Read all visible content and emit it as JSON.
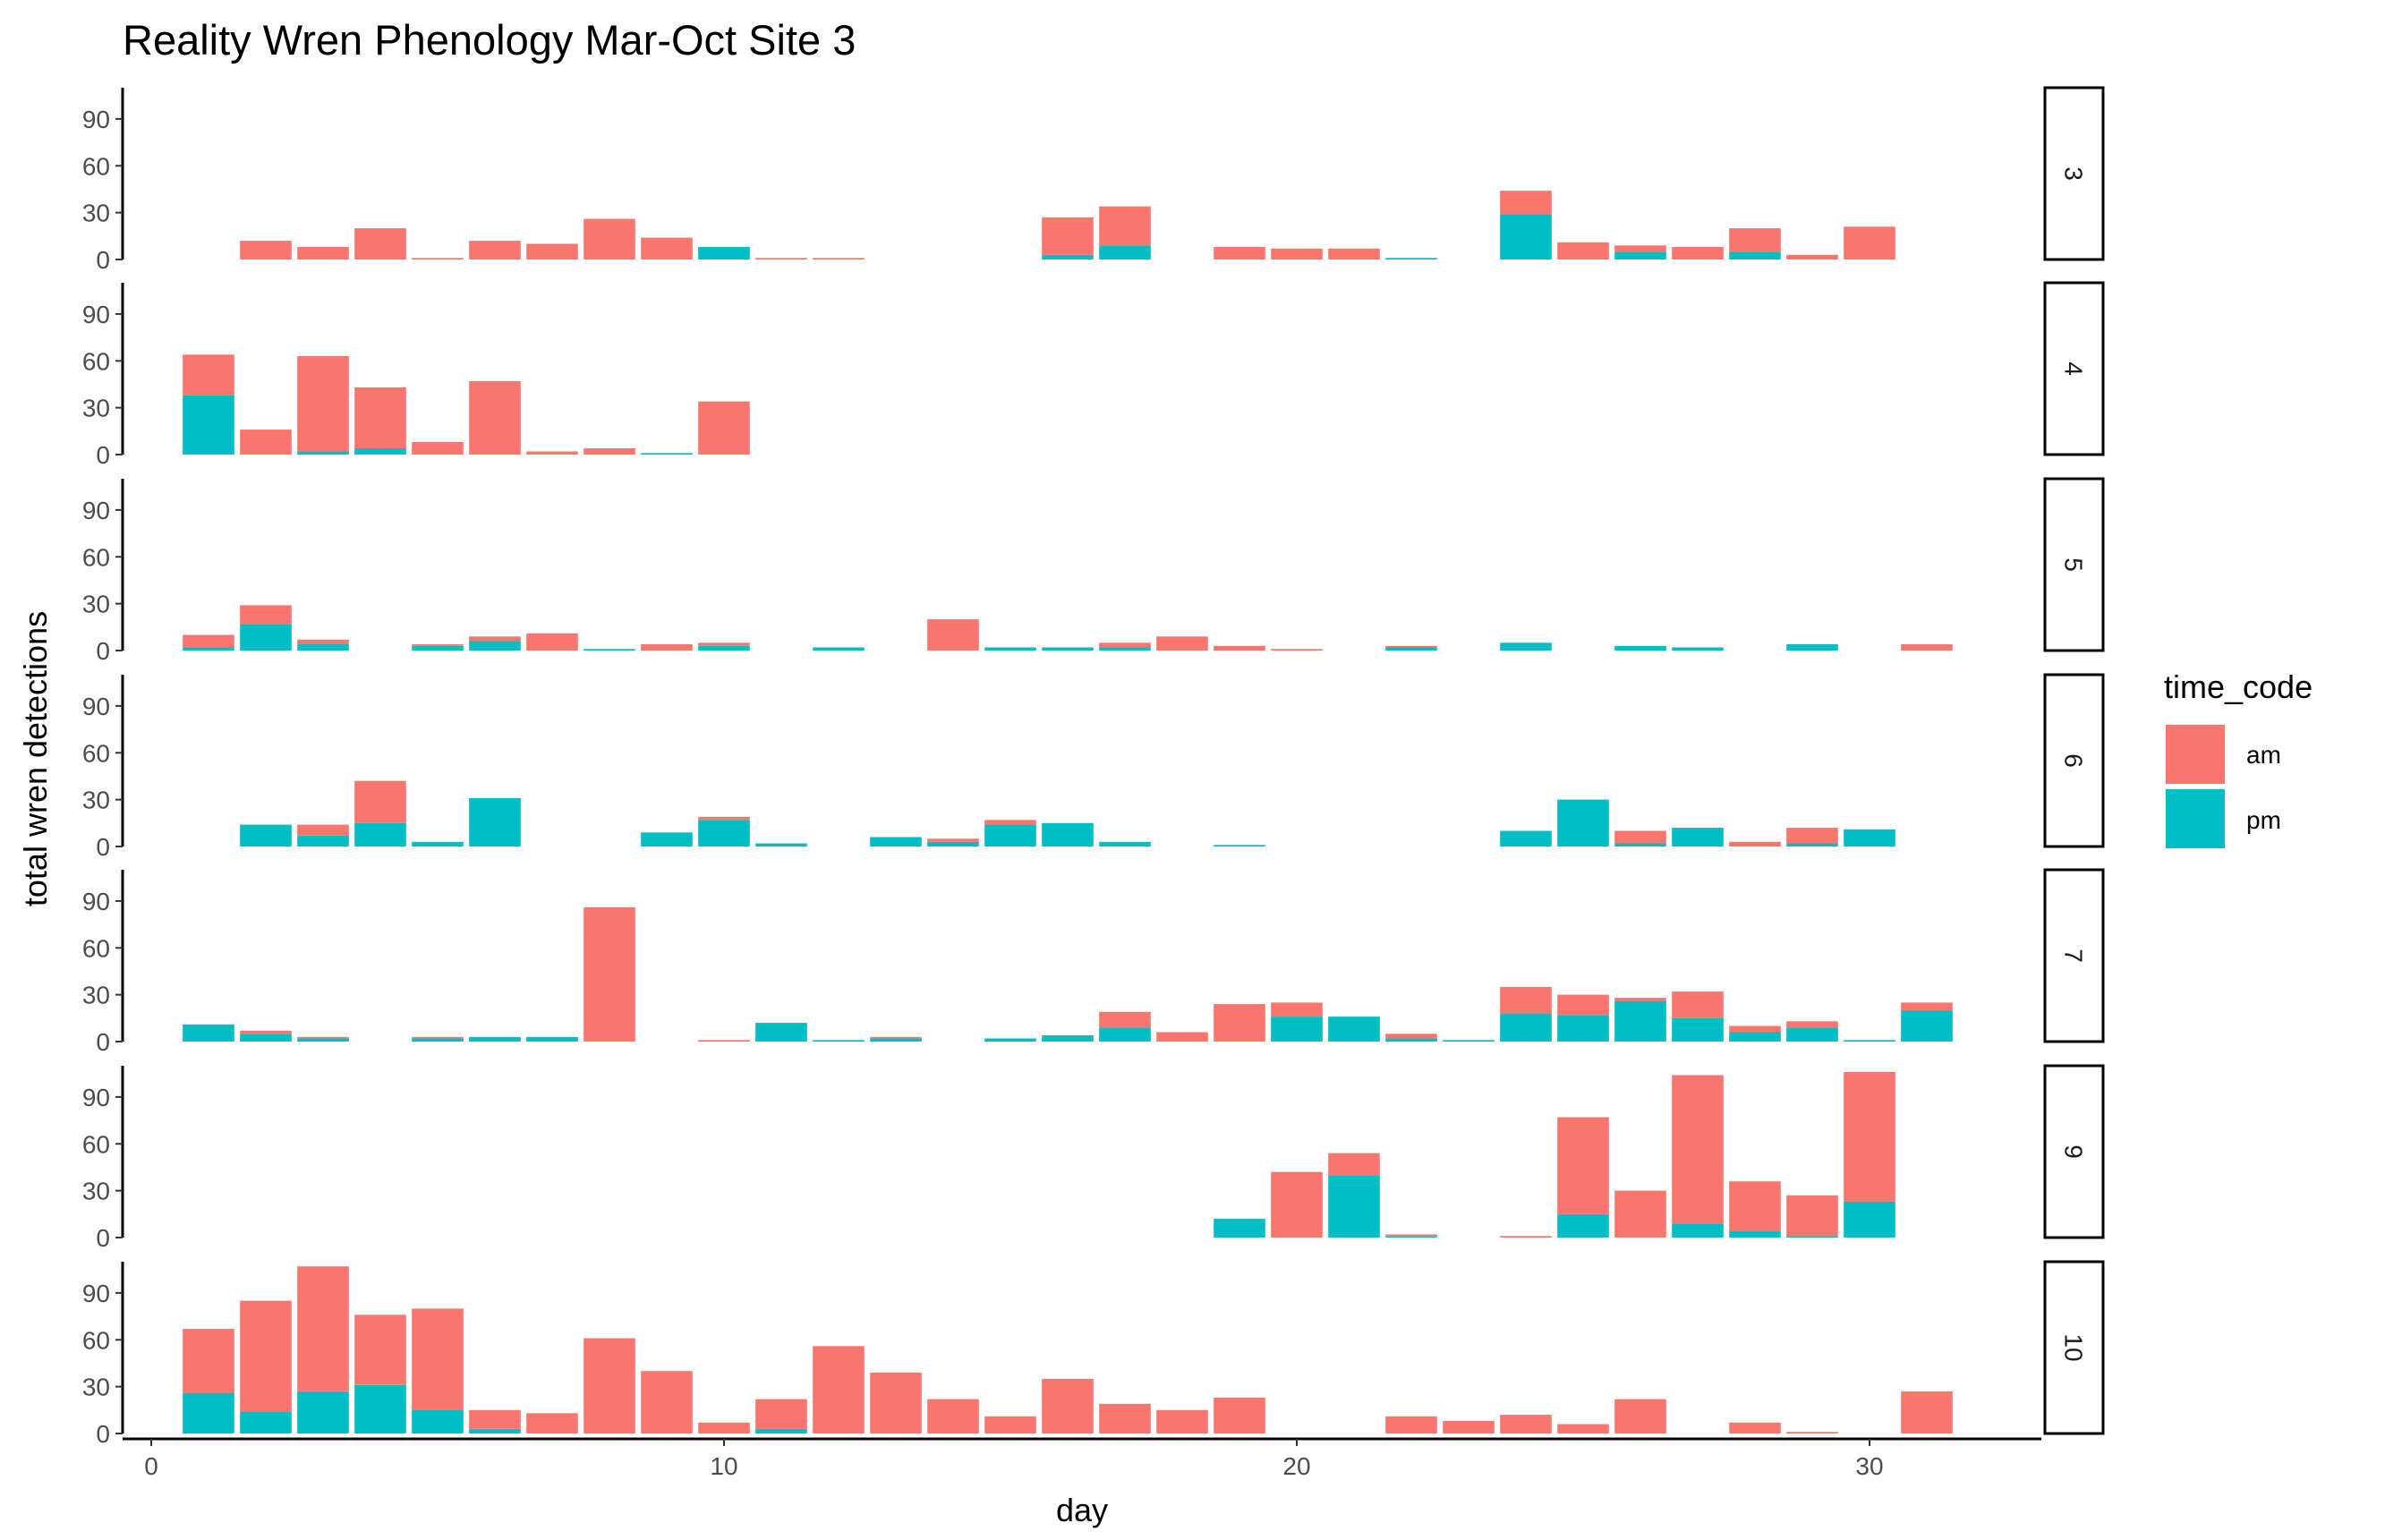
{
  "chart_data": {
    "type": "bar",
    "stacked": true,
    "title": "Reality Wren Phenology Mar-Oct Site 3",
    "xlabel": "day",
    "ylabel": "total wren detections",
    "xlim": [
      -0.5,
      33
    ],
    "ylim": [
      0,
      110
    ],
    "x_ticks": [
      0,
      10,
      20,
      30
    ],
    "y_ticks": [
      0,
      30,
      60,
      90
    ],
    "grid": false,
    "facet_variable": "month",
    "legend": {
      "title": "time_code",
      "position": "right",
      "entries": [
        {
          "label": "am",
          "color": "#F8766D"
        },
        {
          "label": "pm",
          "color": "#00BFC4"
        }
      ]
    },
    "series_order": [
      "pm",
      "am"
    ],
    "panels": [
      {
        "label": "3",
        "days": [
          {
            "day": 2,
            "pm": 0,
            "am": 12
          },
          {
            "day": 3,
            "pm": 0,
            "am": 8
          },
          {
            "day": 4,
            "pm": 0,
            "am": 20
          },
          {
            "day": 5,
            "pm": 0,
            "am": 1
          },
          {
            "day": 6,
            "pm": 0,
            "am": 12
          },
          {
            "day": 7,
            "pm": 0,
            "am": 10
          },
          {
            "day": 8,
            "pm": 0,
            "am": 26
          },
          {
            "day": 9,
            "pm": 0,
            "am": 14
          },
          {
            "day": 10,
            "pm": 8,
            "am": 0
          },
          {
            "day": 11,
            "pm": 0,
            "am": 1
          },
          {
            "day": 12,
            "pm": 0,
            "am": 1
          },
          {
            "day": 16,
            "pm": 3,
            "am": 24
          },
          {
            "day": 17,
            "pm": 9,
            "am": 25
          },
          {
            "day": 19,
            "pm": 0,
            "am": 8
          },
          {
            "day": 20,
            "pm": 0,
            "am": 7
          },
          {
            "day": 21,
            "pm": 0,
            "am": 7
          },
          {
            "day": 22,
            "pm": 1,
            "am": 0
          },
          {
            "day": 24,
            "pm": 29,
            "am": 15
          },
          {
            "day": 25,
            "pm": 0,
            "am": 11
          },
          {
            "day": 26,
            "pm": 5,
            "am": 4
          },
          {
            "day": 27,
            "pm": 0,
            "am": 8
          },
          {
            "day": 28,
            "pm": 5,
            "am": 15
          },
          {
            "day": 29,
            "pm": 0,
            "am": 3
          },
          {
            "day": 30,
            "pm": 0,
            "am": 21
          }
        ]
      },
      {
        "label": "4",
        "days": [
          {
            "day": 1,
            "pm": 38,
            "am": 26
          },
          {
            "day": 2,
            "pm": 0,
            "am": 16
          },
          {
            "day": 3,
            "pm": 2,
            "am": 61
          },
          {
            "day": 4,
            "pm": 4,
            "am": 39
          },
          {
            "day": 5,
            "pm": 0,
            "am": 8
          },
          {
            "day": 6,
            "pm": 0,
            "am": 47
          },
          {
            "day": 7,
            "pm": 0,
            "am": 2
          },
          {
            "day": 8,
            "pm": 0,
            "am": 4
          },
          {
            "day": 9,
            "pm": 1,
            "am": 0
          },
          {
            "day": 10,
            "pm": 0,
            "am": 34
          }
        ]
      },
      {
        "label": "5",
        "days": [
          {
            "day": 1,
            "pm": 2,
            "am": 8
          },
          {
            "day": 2,
            "pm": 17,
            "am": 12
          },
          {
            "day": 3,
            "pm": 4,
            "am": 3
          },
          {
            "day": 5,
            "pm": 3,
            "am": 1
          },
          {
            "day": 6,
            "pm": 6,
            "am": 3
          },
          {
            "day": 7,
            "pm": 0,
            "am": 11
          },
          {
            "day": 8,
            "pm": 1,
            "am": 0
          },
          {
            "day": 9,
            "pm": 0,
            "am": 4
          },
          {
            "day": 10,
            "pm": 3,
            "am": 2
          },
          {
            "day": 12,
            "pm": 2,
            "am": 0
          },
          {
            "day": 14,
            "pm": 0,
            "am": 20
          },
          {
            "day": 15,
            "pm": 2,
            "am": 0
          },
          {
            "day": 16,
            "pm": 2,
            "am": 0
          },
          {
            "day": 17,
            "pm": 2,
            "am": 3
          },
          {
            "day": 18,
            "pm": 0,
            "am": 9
          },
          {
            "day": 19,
            "pm": 0,
            "am": 3
          },
          {
            "day": 20,
            "pm": 0,
            "am": 1
          },
          {
            "day": 22,
            "pm": 2,
            "am": 1
          },
          {
            "day": 24,
            "pm": 5,
            "am": 0
          },
          {
            "day": 26,
            "pm": 3,
            "am": 0
          },
          {
            "day": 27,
            "pm": 2,
            "am": 0
          },
          {
            "day": 29,
            "pm": 4,
            "am": 0
          },
          {
            "day": 31,
            "pm": 0,
            "am": 4
          }
        ]
      },
      {
        "label": "6",
        "days": [
          {
            "day": 2,
            "pm": 14,
            "am": 0
          },
          {
            "day": 3,
            "pm": 7,
            "am": 7
          },
          {
            "day": 4,
            "pm": 15,
            "am": 27
          },
          {
            "day": 5,
            "pm": 3,
            "am": 0
          },
          {
            "day": 6,
            "pm": 31,
            "am": 0
          },
          {
            "day": 9,
            "pm": 9,
            "am": 0
          },
          {
            "day": 10,
            "pm": 17,
            "am": 2
          },
          {
            "day": 11,
            "pm": 2,
            "am": 0
          },
          {
            "day": 13,
            "pm": 6,
            "am": 0
          },
          {
            "day": 14,
            "pm": 3,
            "am": 2
          },
          {
            "day": 15,
            "pm": 14,
            "am": 3
          },
          {
            "day": 16,
            "pm": 15,
            "am": 0
          },
          {
            "day": 17,
            "pm": 3,
            "am": 0
          },
          {
            "day": 19,
            "pm": 1,
            "am": 0
          },
          {
            "day": 24,
            "pm": 10,
            "am": 0
          },
          {
            "day": 25,
            "pm": 30,
            "am": 0
          },
          {
            "day": 26,
            "pm": 2,
            "am": 8
          },
          {
            "day": 27,
            "pm": 12,
            "am": 0
          },
          {
            "day": 28,
            "pm": 0,
            "am": 3
          },
          {
            "day": 29,
            "pm": 2,
            "am": 10
          },
          {
            "day": 30,
            "pm": 11,
            "am": 0
          }
        ]
      },
      {
        "label": "7",
        "days": [
          {
            "day": 1,
            "pm": 11,
            "am": 0
          },
          {
            "day": 2,
            "pm": 5,
            "am": 2
          },
          {
            "day": 3,
            "pm": 2,
            "am": 1
          },
          {
            "day": 5,
            "pm": 2,
            "am": 1
          },
          {
            "day": 6,
            "pm": 3,
            "am": 0
          },
          {
            "day": 7,
            "pm": 3,
            "am": 0
          },
          {
            "day": 8,
            "pm": 0,
            "am": 86
          },
          {
            "day": 10,
            "pm": 0,
            "am": 1
          },
          {
            "day": 11,
            "pm": 12,
            "am": 0
          },
          {
            "day": 12,
            "pm": 1,
            "am": 0
          },
          {
            "day": 13,
            "pm": 2,
            "am": 1
          },
          {
            "day": 15,
            "pm": 2,
            "am": 0
          },
          {
            "day": 16,
            "pm": 4,
            "am": 0
          },
          {
            "day": 17,
            "pm": 9,
            "am": 10
          },
          {
            "day": 18,
            "pm": 0,
            "am": 6
          },
          {
            "day": 19,
            "pm": 0,
            "am": 24
          },
          {
            "day": 20,
            "pm": 16,
            "am": 9
          },
          {
            "day": 21,
            "pm": 16,
            "am": 0
          },
          {
            "day": 22,
            "pm": 2,
            "am": 3
          },
          {
            "day": 23,
            "pm": 1,
            "am": 0
          },
          {
            "day": 24,
            "pm": 18,
            "am": 17
          },
          {
            "day": 25,
            "pm": 17,
            "am": 13
          },
          {
            "day": 26,
            "pm": 26,
            "am": 2
          },
          {
            "day": 27,
            "pm": 15,
            "am": 17
          },
          {
            "day": 28,
            "pm": 6,
            "am": 4
          },
          {
            "day": 29,
            "pm": 9,
            "am": 4
          },
          {
            "day": 30,
            "pm": 1,
            "am": 0
          },
          {
            "day": 31,
            "pm": 20,
            "am": 5
          }
        ]
      },
      {
        "label": "9",
        "days": [
          {
            "day": 19,
            "pm": 12,
            "am": 0
          },
          {
            "day": 20,
            "pm": 0,
            "am": 42
          },
          {
            "day": 21,
            "pm": 40,
            "am": 14
          },
          {
            "day": 22,
            "pm": 1,
            "am": 1
          },
          {
            "day": 24,
            "pm": 0,
            "am": 1
          },
          {
            "day": 25,
            "pm": 15,
            "am": 62
          },
          {
            "day": 26,
            "pm": 0,
            "am": 30
          },
          {
            "day": 27,
            "pm": 9,
            "am": 95
          },
          {
            "day": 28,
            "pm": 4,
            "am": 32
          },
          {
            "day": 29,
            "pm": 1,
            "am": 26
          },
          {
            "day": 30,
            "pm": 23,
            "am": 83
          }
        ]
      },
      {
        "label": "10",
        "days": [
          {
            "day": 1,
            "pm": 26,
            "am": 41
          },
          {
            "day": 2,
            "pm": 14,
            "am": 71
          },
          {
            "day": 3,
            "pm": 27,
            "am": 80
          },
          {
            "day": 4,
            "pm": 31,
            "am": 45
          },
          {
            "day": 5,
            "pm": 15,
            "am": 65
          },
          {
            "day": 6,
            "pm": 3,
            "am": 12
          },
          {
            "day": 7,
            "pm": 0,
            "am": 13
          },
          {
            "day": 8,
            "pm": 0,
            "am": 61
          },
          {
            "day": 9,
            "pm": 0,
            "am": 40
          },
          {
            "day": 10,
            "pm": 0,
            "am": 7
          },
          {
            "day": 11,
            "pm": 3,
            "am": 19
          },
          {
            "day": 12,
            "pm": 0,
            "am": 56
          },
          {
            "day": 13,
            "pm": 0,
            "am": 39
          },
          {
            "day": 14,
            "pm": 0,
            "am": 22
          },
          {
            "day": 15,
            "pm": 0,
            "am": 11
          },
          {
            "day": 16,
            "pm": 0,
            "am": 35
          },
          {
            "day": 17,
            "pm": 0,
            "am": 19
          },
          {
            "day": 18,
            "pm": 0,
            "am": 15
          },
          {
            "day": 19,
            "pm": 0,
            "am": 23
          },
          {
            "day": 22,
            "pm": 0,
            "am": 11
          },
          {
            "day": 23,
            "pm": 0,
            "am": 8
          },
          {
            "day": 24,
            "pm": 0,
            "am": 12
          },
          {
            "day": 25,
            "pm": 0,
            "am": 6
          },
          {
            "day": 26,
            "pm": 0,
            "am": 22
          },
          {
            "day": 28,
            "pm": 0,
            "am": 7
          },
          {
            "day": 29,
            "pm": 0,
            "am": 1
          },
          {
            "day": 31,
            "pm": 0,
            "am": 27
          }
        ]
      }
    ]
  }
}
